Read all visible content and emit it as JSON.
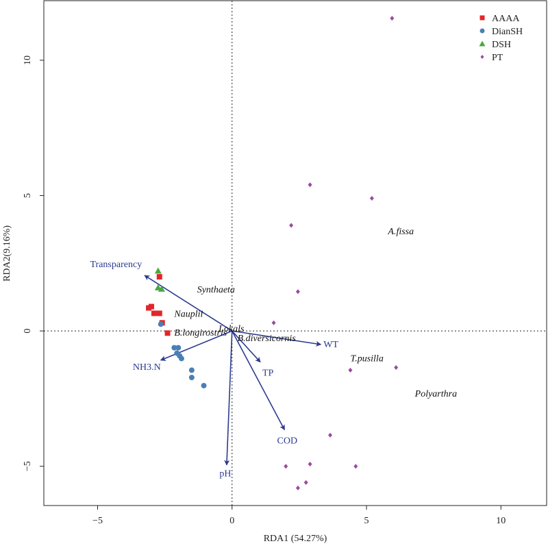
{
  "chart_data": {
    "type": "scatter",
    "xlabel": "RDA1 (54.27%)",
    "ylabel": "RDA2(9.16%)",
    "xlim": [
      -7,
      11.7
    ],
    "ylim": [
      -6.45,
      12.2
    ],
    "x_ticks": [
      -5,
      0,
      5,
      10
    ],
    "x_tick_labels": [
      "−5",
      "0",
      "5",
      "10"
    ],
    "y_ticks": [
      -5,
      0,
      5,
      10
    ],
    "y_tick_labels": [
      "−5",
      "0",
      "5",
      "10"
    ],
    "zero_lines": true,
    "grid": false,
    "legend_position": "top-right",
    "series": [
      {
        "name": "AAAA",
        "marker": "square",
        "color": "#e3262a",
        "points": [
          [
            -2.7,
            2.0
          ],
          [
            -3.1,
            0.85
          ],
          [
            -3.0,
            0.9
          ],
          [
            -2.9,
            0.65
          ],
          [
            -2.7,
            0.65
          ],
          [
            -2.6,
            0.3
          ],
          [
            -2.4,
            -0.08
          ]
        ]
      },
      {
        "name": "DianSH",
        "marker": "circle",
        "color": "#4a7fb5",
        "points": [
          [
            -2.65,
            0.25
          ],
          [
            -2.15,
            -0.62
          ],
          [
            -2.0,
            -0.62
          ],
          [
            -2.05,
            -0.82
          ],
          [
            -1.95,
            -0.92
          ],
          [
            -1.88,
            -1.02
          ],
          [
            -1.5,
            -1.45
          ],
          [
            -1.5,
            -1.72
          ],
          [
            -1.05,
            -2.02
          ]
        ]
      },
      {
        "name": "DSH",
        "marker": "triangle",
        "color": "#4aa842",
        "points": [
          [
            -2.75,
            2.22
          ],
          [
            -2.75,
            1.6
          ],
          [
            -2.62,
            1.55
          ]
        ]
      },
      {
        "name": "PT",
        "marker": "diamond",
        "color": "#9b4aa0",
        "points": [
          [
            5.95,
            11.55
          ],
          [
            2.9,
            5.4
          ],
          [
            5.2,
            4.9
          ],
          [
            2.2,
            3.9
          ],
          [
            2.45,
            1.45
          ],
          [
            1.55,
            0.3
          ],
          [
            4.4,
            -1.45
          ],
          [
            6.1,
            -1.35
          ],
          [
            3.65,
            -3.85
          ],
          [
            2.0,
            -5.0
          ],
          [
            2.9,
            -4.92
          ],
          [
            4.6,
            -5.0
          ],
          [
            2.75,
            -5.6
          ],
          [
            2.45,
            -5.8
          ]
        ]
      }
    ],
    "env_arrows": {
      "color": "#2b3a8f",
      "arrows": [
        {
          "label": "Transparency",
          "x": -3.25,
          "y": 2.05,
          "label_dx": -4,
          "label_dy": -12,
          "anchor": "end"
        },
        {
          "label": "NH3.N",
          "x": -2.65,
          "y": -1.08,
          "label_dx": 0,
          "label_dy": 14,
          "anchor": "end"
        },
        {
          "label": "WT",
          "x": 3.3,
          "y": -0.5,
          "label_dx": 4,
          "label_dy": 4,
          "anchor": "start"
        },
        {
          "label": "TP",
          "x": 1.05,
          "y": -1.15,
          "label_dx": 3,
          "label_dy": 20,
          "anchor": "start"
        },
        {
          "label": "COD",
          "x": 1.95,
          "y": -3.65,
          "label_dx": 4,
          "label_dy": 20,
          "anchor": "middle"
        },
        {
          "label": "pH",
          "x": -0.2,
          "y": -4.95,
          "label_dx": -2,
          "label_dy": 17,
          "anchor": "middle"
        }
      ]
    },
    "species_labels": [
      {
        "label": "A.fissa",
        "x": 5.8,
        "y": 3.7
      },
      {
        "label": "Synthaeta",
        "x": -1.3,
        "y": 1.55
      },
      {
        "label": "Nauplii",
        "x": -2.15,
        "y": 0.65
      },
      {
        "label": "B.longirostris",
        "x": -2.15,
        "y": -0.05
      },
      {
        "label": "Lokals",
        "x": -0.5,
        "y": 0.1
      },
      {
        "label": "B.diversicornis",
        "x": 0.2,
        "y": -0.25
      },
      {
        "label": "T.pusilla",
        "x": 4.4,
        "y": -1.0
      },
      {
        "label": "Polyarthra",
        "x": 6.8,
        "y": -2.3
      }
    ]
  }
}
